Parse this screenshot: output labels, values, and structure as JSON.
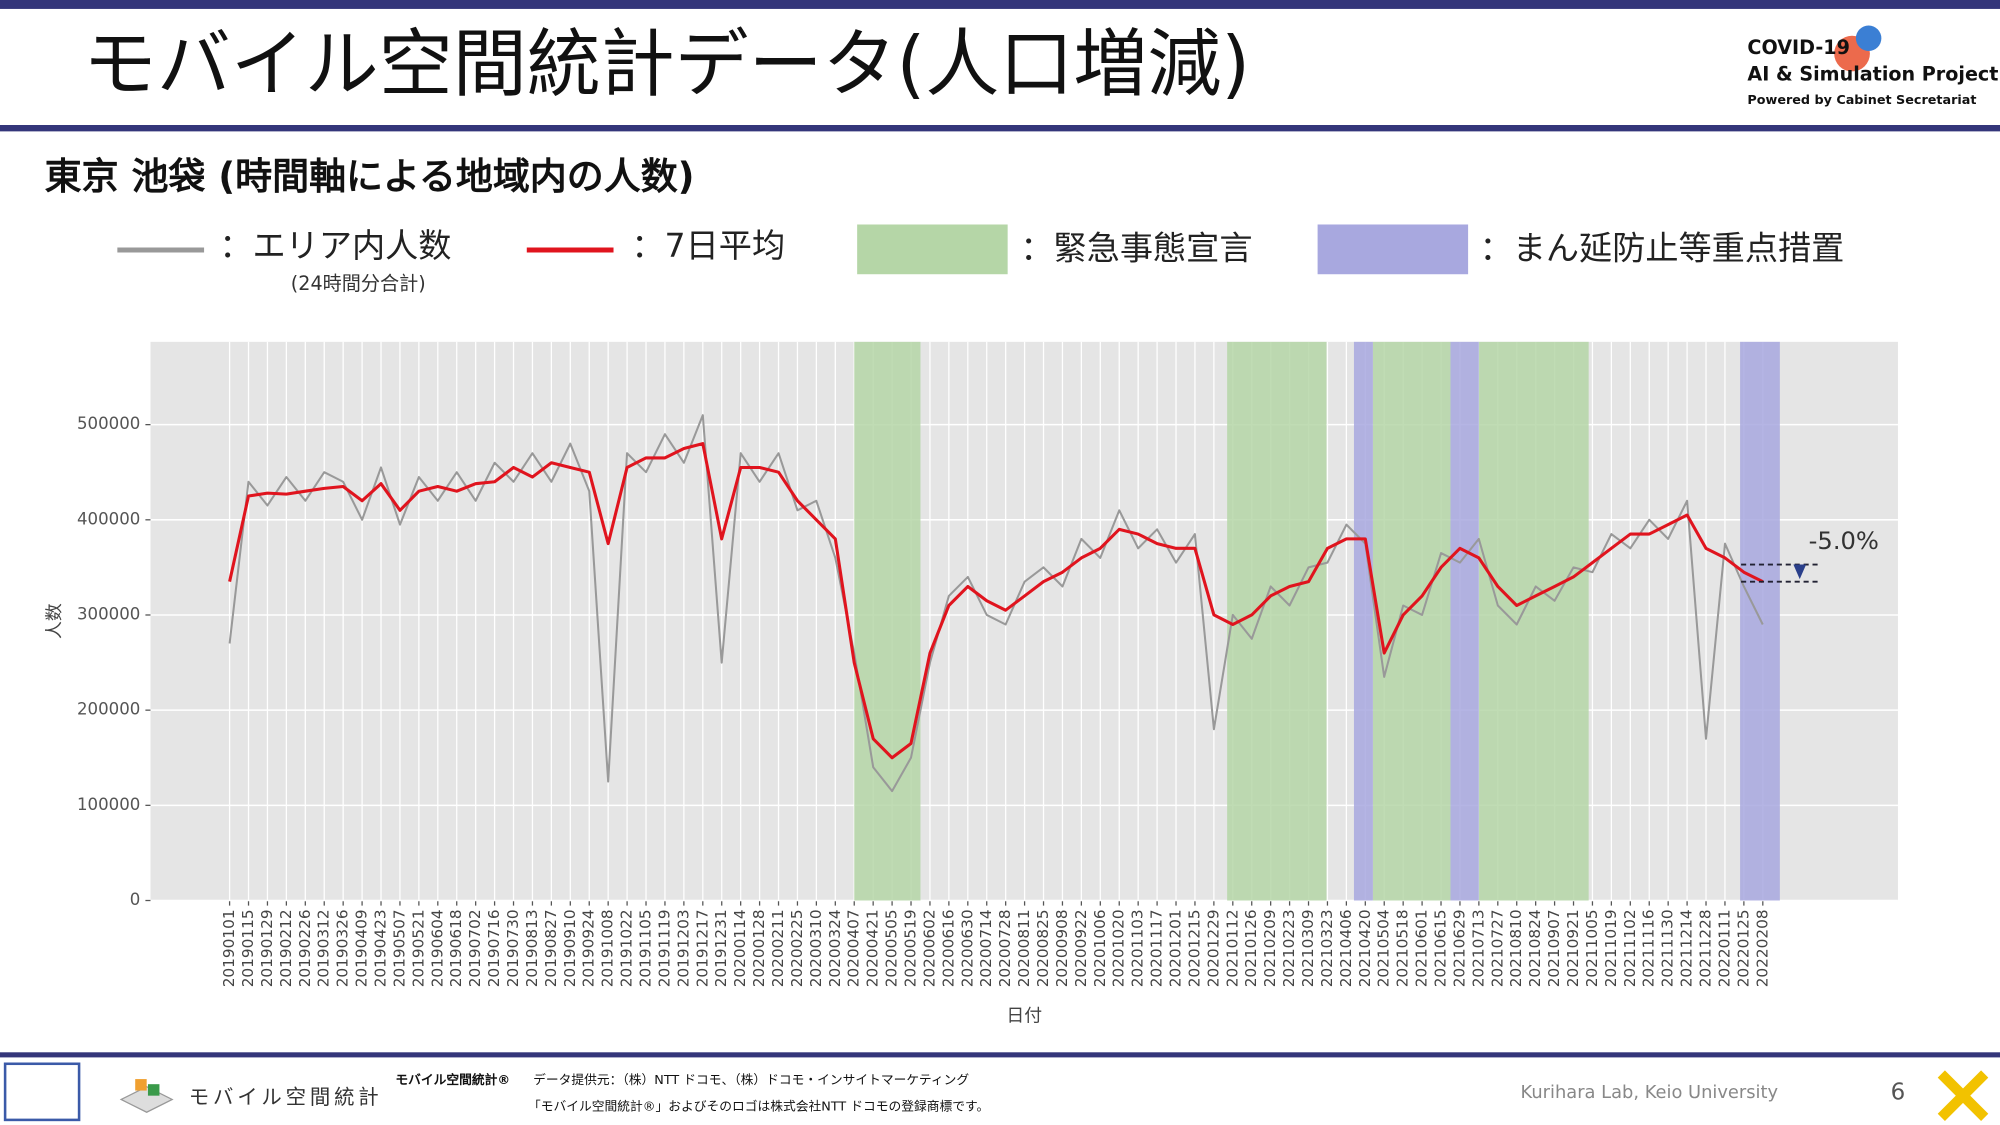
{
  "header": {
    "title": "モバイル空間統計データ(人口増減)",
    "logo_lines": [
      "COVID-19",
      "AI & Simulation Project",
      "Powered by Cabinet Secretariat"
    ]
  },
  "subtitle": "東京 池袋 (時間軸による地域内の人数)",
  "chart_data": {
    "type": "line",
    "ylabel": "人数",
    "xlabel": "日付",
    "categories": [
      "20190101",
      "20190115",
      "20190129",
      "20190212",
      "20190226",
      "20190312",
      "20190326",
      "20190409",
      "20190423",
      "20190507",
      "20190521",
      "20190604",
      "20190618",
      "20190702",
      "20190716",
      "20190730",
      "20190813",
      "20190827",
      "20190910",
      "20190924",
      "20191008",
      "20191022",
      "20191105",
      "20191119",
      "20191203",
      "20191217",
      "20191231",
      "20200114",
      "20200128",
      "20200211",
      "20200225",
      "20200310",
      "20200324",
      "20200407",
      "20200421",
      "20200505",
      "20200519",
      "20200602",
      "20200616",
      "20200630",
      "20200714",
      "20200728",
      "20200811",
      "20200825",
      "20200908",
      "20200922",
      "20201006",
      "20201020",
      "20201103",
      "20201117",
      "20201201",
      "20201215",
      "20201229",
      "20210112",
      "20210126",
      "20210209",
      "20210223",
      "20210309",
      "20210323",
      "20210406",
      "20210420",
      "20210504",
      "20210518",
      "20210601",
      "20210615",
      "20210629",
      "20210713",
      "20210727",
      "20210810",
      "20210824",
      "20210907",
      "20210921",
      "20211005",
      "20211019",
      "20211102",
      "20211116",
      "20211130",
      "20211214",
      "20211228",
      "20220111",
      "20220125",
      "20220208"
    ],
    "series": [
      {
        "name": "：エリア内人数",
        "legend_note": "(24時間分合計)",
        "color": "#999999",
        "values": [
          270000,
          440000,
          415000,
          445000,
          420000,
          450000,
          440000,
          400000,
          455000,
          395000,
          445000,
          420000,
          450000,
          420000,
          460000,
          440000,
          470000,
          440000,
          480000,
          430000,
          125000,
          470000,
          450000,
          490000,
          460000,
          510000,
          250000,
          470000,
          440000,
          470000,
          410000,
          420000,
          360000,
          260000,
          140000,
          115000,
          150000,
          250000,
          320000,
          340000,
          300000,
          290000,
          335000,
          350000,
          330000,
          380000,
          360000,
          410000,
          370000,
          390000,
          355000,
          385000,
          180000,
          300000,
          275000,
          330000,
          310000,
          350000,
          355000,
          395000,
          375000,
          235000,
          310000,
          300000,
          365000,
          355000,
          380000,
          310000,
          290000,
          330000,
          315000,
          350000,
          345000,
          385000,
          370000,
          400000,
          380000,
          420000,
          170000,
          375000,
          330000,
          290000
        ]
      },
      {
        "name": "：7日平均",
        "color": "#e0141e",
        "values": [
          335000,
          425000,
          428000,
          427000,
          430000,
          433000,
          435000,
          420000,
          438000,
          410000,
          430000,
          435000,
          430000,
          438000,
          440000,
          455000,
          445000,
          460000,
          455000,
          450000,
          375000,
          455000,
          465000,
          465000,
          475000,
          480000,
          380000,
          455000,
          455000,
          450000,
          420000,
          400000,
          380000,
          250000,
          170000,
          150000,
          165000,
          260000,
          310000,
          330000,
          315000,
          305000,
          320000,
          335000,
          345000,
          360000,
          370000,
          390000,
          385000,
          375000,
          370000,
          370000,
          300000,
          290000,
          300000,
          320000,
          330000,
          335000,
          370000,
          380000,
          380000,
          260000,
          300000,
          320000,
          350000,
          370000,
          360000,
          330000,
          310000,
          320000,
          330000,
          340000,
          355000,
          370000,
          385000,
          385000,
          395000,
          405000,
          370000,
          360000,
          345000,
          335000
        ]
      }
    ],
    "bands": [
      {
        "name": "：緊急事態宣言",
        "color": "#b5d6a7",
        "ranges": [
          [
            33.0,
            36.5
          ],
          [
            52.7,
            57.95
          ],
          [
            60.4,
            64.5
          ],
          [
            66.0,
            71.8
          ]
        ]
      },
      {
        "name": "：まん延防止等重点措置",
        "color": "#a8a8df",
        "ranges": [
          [
            59.4,
            60.4
          ],
          [
            64.5,
            66.0
          ],
          [
            79.8,
            81.9
          ]
        ]
      }
    ],
    "ylim": [
      0,
      587000
    ],
    "yticks": [
      0,
      100000,
      200000,
      300000,
      400000,
      500000
    ],
    "grid": true,
    "annotation": {
      "text": "-5.0%",
      "from": 353000,
      "to": 335000
    }
  },
  "footer": {
    "logo": "モバイル空間統計",
    "brand": "モバイル空間統計®",
    "provider": "データ提供元：（株）NTT ドコモ、（株）ドコモ・インサイトマーケティング",
    "trademark": "「モバイル空間統計®」およびそのロゴは株式会社NTT ドコモの登録商標です。",
    "lab": "Kurihara Lab, Keio University",
    "page": "6"
  }
}
